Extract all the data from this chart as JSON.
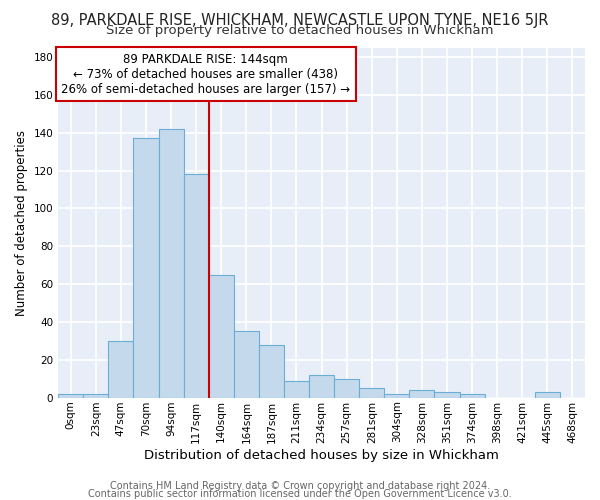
{
  "title": "89, PARKDALE RISE, WHICKHAM, NEWCASTLE UPON TYNE, NE16 5JR",
  "subtitle": "Size of property relative to detached houses in Whickham",
  "xlabel": "Distribution of detached houses by size in Whickham",
  "ylabel": "Number of detached properties",
  "bin_labels": [
    "0sqm",
    "23sqm",
    "47sqm",
    "70sqm",
    "94sqm",
    "117sqm",
    "140sqm",
    "164sqm",
    "187sqm",
    "211sqm",
    "234sqm",
    "257sqm",
    "281sqm",
    "304sqm",
    "328sqm",
    "351sqm",
    "374sqm",
    "398sqm",
    "421sqm",
    "445sqm",
    "468sqm"
  ],
  "bar_values": [
    2,
    2,
    30,
    137,
    142,
    118,
    65,
    35,
    28,
    9,
    12,
    10,
    5,
    2,
    4,
    3,
    2,
    0,
    0,
    3,
    0
  ],
  "bar_color": "#c5d9ec",
  "bar_edge_color": "#6aaed6",
  "vline_x": 6,
  "vline_color": "#cc0000",
  "annotation_text": "89 PARKDALE RISE: 144sqm\n← 73% of detached houses are smaller (438)\n26% of semi-detached houses are larger (157) →",
  "annotation_box_color": "#ffffff",
  "annotation_box_edge": "#cc0000",
  "ylim": [
    0,
    185
  ],
  "yticks": [
    0,
    20,
    40,
    60,
    80,
    100,
    120,
    140,
    160,
    180
  ],
  "footer1": "Contains HM Land Registry data © Crown copyright and database right 2024.",
  "footer2": "Contains public sector information licensed under the Open Government Licence v3.0.",
  "bg_color": "#ffffff",
  "plot_bg_color": "#e8eef7",
  "grid_color": "#ffffff",
  "title_fontsize": 10.5,
  "subtitle_fontsize": 9.5,
  "xlabel_fontsize": 9.5,
  "ylabel_fontsize": 8.5,
  "tick_fontsize": 7.5,
  "footer_fontsize": 7.0,
  "annotation_fontsize": 8.5
}
